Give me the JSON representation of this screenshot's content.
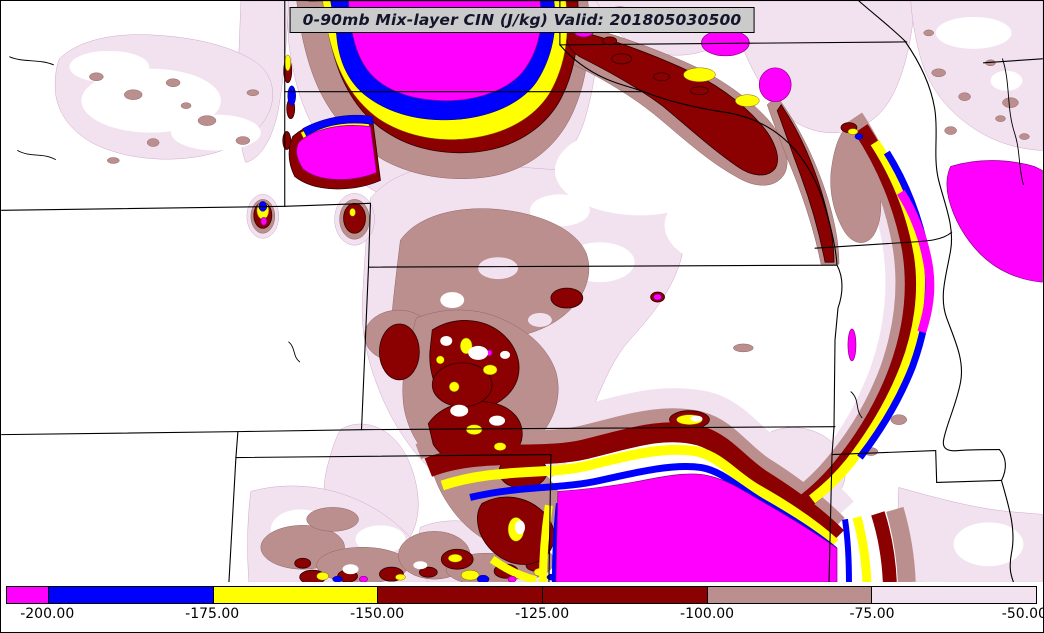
{
  "title": {
    "text": "0-90mb Mix-layer CIN (J/kg) Valid: 201805030500",
    "parameter": "0-90mb Mix-layer CIN",
    "units": "J/kg",
    "valid_label": "Valid:",
    "valid_time": "201805030500"
  },
  "palette": {
    "magenta": "#FF00FF",
    "blue": "#0000FF",
    "yellow": "#FFFF00",
    "dark_red": "#8B0000",
    "rosy_brown": "#BC8F8F",
    "pale_pink": "#F2E2F0",
    "white": "#FFFFFF",
    "black": "#000000",
    "title_bg": "#CBCBCB",
    "title_text": "#14142B"
  },
  "colorbar": {
    "tick_labels": [
      "-200.00",
      "-175.00",
      "-150.00",
      "-125.00",
      "-100.00",
      "-75.00",
      "-50.00"
    ],
    "levels": [
      -200,
      -175,
      -150,
      -125,
      -100,
      -75,
      -50
    ],
    "segments": [
      {
        "range": "< -200",
        "color_key": "magenta"
      },
      {
        "range": "-200 to -175",
        "color_key": "blue"
      },
      {
        "range": "-175 to -150",
        "color_key": "yellow"
      },
      {
        "range": "-150 to -125",
        "color_key": "dark_red"
      },
      {
        "range": "-125 to -100",
        "color_key": "dark_red"
      },
      {
        "range": "-100 to -75",
        "color_key": "rosy_brown"
      },
      {
        "range": "-75 to -50",
        "color_key": "pale_pink"
      }
    ]
  }
}
